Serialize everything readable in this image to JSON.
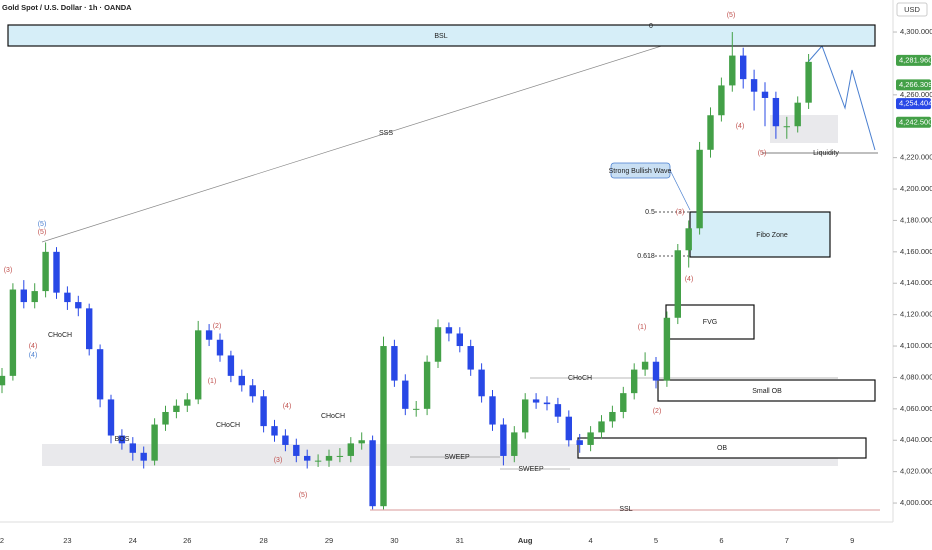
{
  "chart_data": {
    "type": "candlestick",
    "title": "Gold Spot / U.S. Dollar · 1h · OANDA",
    "currency": "USD",
    "categories": [
      "2",
      null,
      null,
      null,
      null,
      null,
      "23",
      null,
      null,
      null,
      null,
      null,
      "24",
      null,
      null,
      null,
      null,
      "26",
      null,
      null,
      null,
      null,
      null,
      null,
      "28",
      null,
      null,
      null,
      null,
      null,
      "29",
      null,
      null,
      null,
      null,
      null,
      "30",
      null,
      null,
      null,
      null,
      null,
      "31",
      null,
      null,
      null,
      null,
      null,
      "Aug",
      null,
      null,
      null,
      null,
      null,
      "4",
      null,
      null,
      null,
      null,
      null,
      "5",
      null,
      null,
      null,
      null,
      null,
      "6",
      null,
      null,
      null,
      null,
      null,
      "7",
      null,
      null,
      null,
      null,
      null,
      "9"
    ],
    "open": [
      4075,
      4081,
      4136,
      4128,
      4135,
      4160,
      4134,
      4128,
      4124,
      4098,
      4066,
      4043,
      4038,
      4032,
      4027,
      4050,
      4058,
      4062,
      4066,
      4110,
      4104,
      4094,
      4081,
      4075,
      4068,
      4049,
      4043,
      4037,
      4030,
      4027,
      4027,
      4030,
      4030,
      4038,
      4040,
      3998,
      4100,
      4078,
      4060,
      4060,
      4090,
      4112,
      4108,
      4100,
      4085,
      4068,
      4050,
      4030,
      4045,
      4066,
      4064,
      4063,
      4055,
      4040,
      4037,
      4045,
      4052,
      4058,
      4070,
      4085,
      4090,
      4078,
      4118,
      4161,
      4175,
      4225,
      4247,
      4266,
      4285,
      4270,
      4262,
      4258,
      4240,
      4240,
      4255,
      null,
      null,
      null,
      null
    ],
    "high": [
      4086,
      4140,
      4142,
      4140,
      4166,
      4163,
      4138,
      4132,
      4127,
      4101,
      4069,
      4047,
      4042,
      4036,
      4054,
      4062,
      4066,
      4070,
      4116,
      4114,
      4108,
      4097,
      4085,
      4079,
      4072,
      4053,
      4047,
      4041,
      4034,
      4031,
      4034,
      4035,
      4042,
      4045,
      4043,
      4106,
      4104,
      4082,
      4065,
      4094,
      4117,
      4115,
      4112,
      4104,
      4089,
      4072,
      4054,
      4049,
      4070,
      4070,
      4068,
      4067,
      4059,
      4044,
      4049,
      4056,
      4062,
      4074,
      4089,
      4096,
      4093,
      4122,
      4165,
      4180,
      4230,
      4252,
      4271,
      4300,
      4290,
      4276,
      4268,
      4262,
      4246,
      4259,
      4286,
      null,
      null,
      null,
      null
    ],
    "low": [
      4070,
      4078,
      4124,
      4124,
      4131,
      4130,
      4123,
      4119,
      4094,
      4061,
      4038,
      4034,
      4027,
      4022,
      4024,
      4046,
      4054,
      4058,
      4063,
      4100,
      4090,
      4077,
      4071,
      4064,
      4045,
      4039,
      4033,
      4026,
      4022,
      4023,
      4023,
      4026,
      4026,
      4034,
      3996,
      3996,
      4074,
      4056,
      4055,
      4056,
      4086,
      4103,
      4096,
      4081,
      4064,
      4046,
      4024,
      4026,
      4041,
      4060,
      4059,
      4051,
      4036,
      4032,
      4033,
      4041,
      4048,
      4054,
      4066,
      4081,
      4073,
      4074,
      4114,
      4150,
      4171,
      4220,
      4243,
      4262,
      4264,
      4250,
      4240,
      4232,
      4232,
      4236,
      4251,
      null,
      null,
      null,
      null
    ],
    "close": [
      4081,
      4136,
      4128,
      4135,
      4160,
      4134,
      4128,
      4124,
      4098,
      4066,
      4043,
      4038,
      4032,
      4027,
      4050,
      4058,
      4062,
      4066,
      4110,
      4104,
      4094,
      4081,
      4075,
      4068,
      4049,
      4043,
      4037,
      4030,
      4027,
      4027,
      4030,
      4030,
      4038,
      4040,
      3998,
      4100,
      4078,
      4060,
      4060,
      4090,
      4112,
      4108,
      4100,
      4085,
      4068,
      4050,
      4030,
      4045,
      4066,
      4064,
      4063,
      4055,
      4040,
      4037,
      4045,
      4052,
      4058,
      4070,
      4085,
      4090,
      4078,
      4118,
      4161,
      4175,
      4225,
      4247,
      4266,
      4285,
      4270,
      4262,
      4258,
      4240,
      4240,
      4255,
      4281,
      null,
      null,
      null,
      null
    ],
    "up_color": "#43a047",
    "down_color": "#2848e6",
    "ylim": [
      3989.2,
      4320.4
    ],
    "yticks": [
      {
        "value": 4000,
        "label": "4,000.000"
      },
      {
        "value": 4020,
        "label": "4,020.000"
      },
      {
        "value": 4040,
        "label": "4,040.000"
      },
      {
        "value": 4060,
        "label": "4,060.000"
      },
      {
        "value": 4080,
        "label": "4,080.000"
      },
      {
        "value": 4100,
        "label": "4,100.000"
      },
      {
        "value": 4120,
        "label": "4,120.000"
      },
      {
        "value": 4140,
        "label": "4,140.000"
      },
      {
        "value": 4160,
        "label": "4,160.000"
      },
      {
        "value": 4180,
        "label": "4,180.000"
      },
      {
        "value": 4200,
        "label": "4,200.000"
      },
      {
        "value": 4220,
        "label": "4,220.000"
      },
      {
        "value": 4260,
        "label": "4,260.000"
      },
      {
        "value": 4300,
        "label": "4,300.000"
      }
    ],
    "price_labels": [
      {
        "value": 4281.96,
        "label": "4,281.960",
        "color": "#43a047"
      },
      {
        "value": 4266.309,
        "label": "4,266.309",
        "color": "#43a047"
      },
      {
        "value": 4254.404,
        "label": "4,254.404",
        "color": "#2848e6"
      },
      {
        "value": 4242.5,
        "label": "4,242.500",
        "color": "#43a047"
      }
    ],
    "zones": [
      "BSL",
      "Fibo Zone",
      "FVG",
      "Small OB",
      "OB"
    ],
    "annotations": [
      "SSS",
      "Strong Bullish Wave",
      "0.5",
      "0.618",
      "0",
      "Liquidity",
      "SSL",
      "CHoCH",
      "CHoCH",
      "CHoCH",
      "CHoCH",
      "BOS",
      "SWEEP",
      "SWEEP"
    ],
    "wave_labels": [
      "(5)",
      "(5)",
      "(3)",
      "(4)",
      "(4)",
      "(2)",
      "(1)",
      "(4)",
      "(3)",
      "(5)",
      "(5)",
      "(4)",
      "(1)",
      "(2)",
      "(3)",
      "(4)",
      "(5)"
    ]
  }
}
